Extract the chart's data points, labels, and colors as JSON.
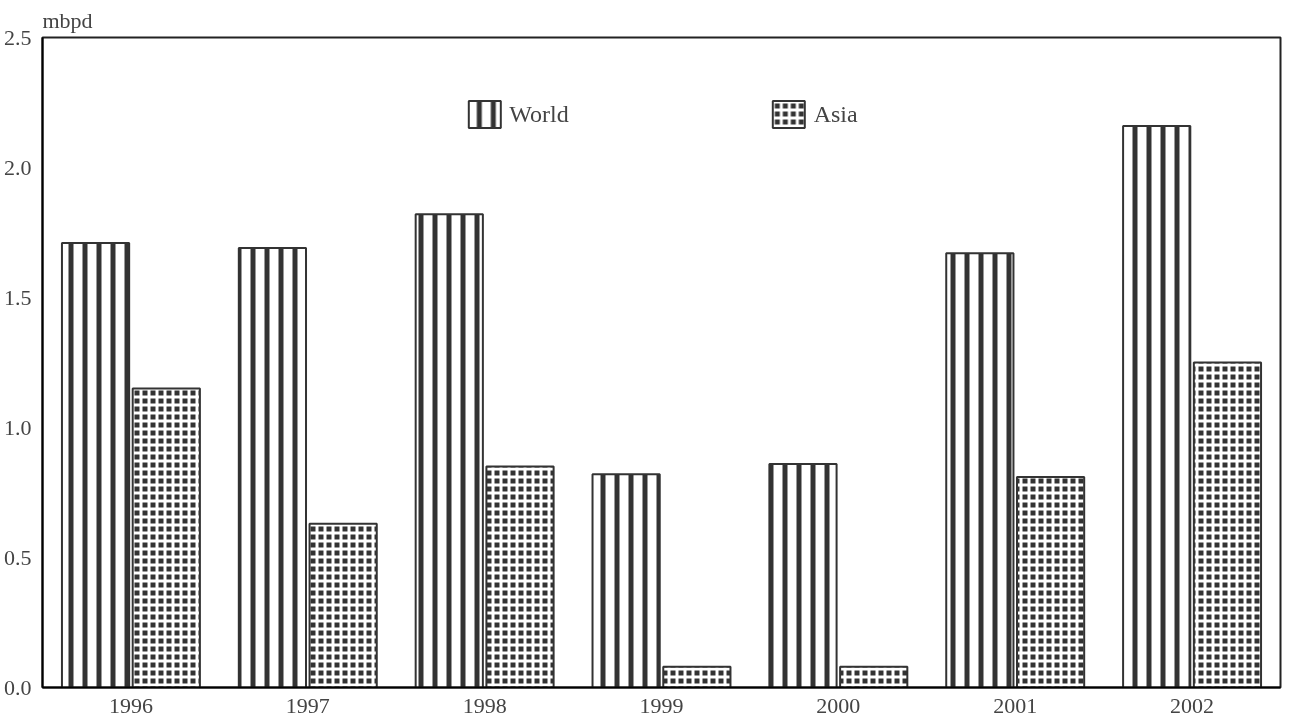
{
  "chart_data": {
    "type": "bar",
    "ylabel": "mbpd",
    "categories": [
      "1996",
      "1997",
      "1998",
      "1999",
      "2000",
      "2001",
      "2002"
    ],
    "series": [
      {
        "name": "World",
        "color": "#333333",
        "values": [
          1.71,
          1.69,
          1.82,
          0.82,
          0.86,
          1.67,
          2.16
        ]
      },
      {
        "name": "Asia",
        "color": "#333333",
        "values": [
          1.15,
          0.63,
          0.85,
          0.08,
          0.08,
          0.81,
          1.25
        ]
      }
    ],
    "ylim": [
      0,
      2.5
    ],
    "yticks": [
      {
        "value": 0,
        "label": "0.0"
      },
      {
        "value": 0.5,
        "label": "0.5"
      },
      {
        "value": 1,
        "label": "1.0"
      },
      {
        "value": 1.5,
        "label": "1.5"
      },
      {
        "value": 2,
        "label": "2.0"
      },
      {
        "value": 2.5,
        "label": "2.5"
      }
    ],
    "grid": false,
    "legend": "top"
  }
}
